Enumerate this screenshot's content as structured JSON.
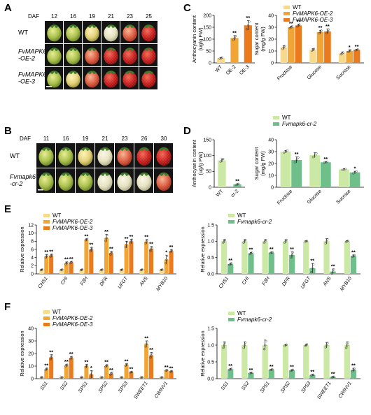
{
  "panels": {
    "A": {
      "label": "A",
      "daf_label": "DAF",
      "days": [
        "12",
        "16",
        "19",
        "21",
        "23",
        "25"
      ],
      "rows": [
        {
          "label": "WT",
          "italic": false
        },
        {
          "label": "FvMAPK6\n-OE-2",
          "italic": true
        },
        {
          "label": "FvMAPK6\n-OE-3",
          "italic": true
        }
      ]
    },
    "B": {
      "label": "B",
      "daf_label": "DAF",
      "days": [
        "11",
        "16",
        "19",
        "21",
        "23",
        "26",
        "30"
      ],
      "rows": [
        {
          "label": "WT",
          "italic": false
        },
        {
          "label": "Fvmapk6\n-cr-2",
          "italic": true
        }
      ]
    },
    "C": {
      "label": "C"
    },
    "D": {
      "label": "D"
    },
    "E": {
      "label": "E"
    },
    "F": {
      "label": "F"
    }
  },
  "colors": {
    "wt_oe": "#f7d98b",
    "oe2": "#f0a535",
    "oe3": "#ea7a1c",
    "wt_cr": "#cbe8a4",
    "cr2": "#6fbf8b"
  },
  "chart_data": [
    {
      "id": "C-anthocyanin",
      "type": "bar",
      "ylabel": "Anthocyanin content\n(ug/g FW)",
      "categories": [
        "WT",
        "OE-2",
        "OE-3"
      ],
      "values": [
        20,
        105,
        158
      ],
      "errors": [
        3,
        10,
        20
      ],
      "sig": [
        "",
        "**",
        "**"
      ],
      "ylim": [
        0,
        200
      ],
      "yticks": [
        0,
        50,
        100,
        150,
        200
      ],
      "bar_colors": [
        "#f7d98b",
        "#f0a535",
        "#ea7a1c"
      ]
    },
    {
      "id": "C-sugar",
      "type": "bar",
      "ylabel": "Sugar content\n(mg/g FW)",
      "categories": [
        "Fructose",
        "Glucose",
        "Sucrose"
      ],
      "series": [
        {
          "name": "WT",
          "values": [
            13,
            11,
            8
          ],
          "errors": [
            1.5,
            1,
            1
          ],
          "sig": [
            "",
            "",
            ""
          ]
        },
        {
          "name": "FvMAPK6-OE-2",
          "values": [
            30,
            26,
            10
          ],
          "errors": [
            1,
            1.5,
            1
          ],
          "sig": [
            "**",
            "**",
            "*"
          ]
        },
        {
          "name": "FvMAPK6-OE-3",
          "values": [
            31.5,
            26.5,
            11
          ],
          "errors": [
            1,
            2,
            0.5
          ],
          "sig": [
            "**",
            "**",
            "**"
          ]
        }
      ],
      "ylim": [
        0,
        40
      ],
      "yticks": [
        0,
        10,
        20,
        30,
        40
      ],
      "legend": "top-left"
    },
    {
      "id": "D-anthocyanin",
      "type": "bar",
      "ylabel": "Anthocyanin content\n(ug/g FW)",
      "categories": [
        "WT",
        "cr-2"
      ],
      "values": [
        85,
        9
      ],
      "errors": [
        5,
        2
      ],
      "sig": [
        "",
        "**"
      ],
      "ylim": [
        0,
        150
      ],
      "yticks": [
        0,
        50,
        100,
        150
      ],
      "bar_colors": [
        "#cbe8a4",
        "#6fbf8b"
      ]
    },
    {
      "id": "D-sugar",
      "type": "bar",
      "ylabel": "Sugar content\n(mg/g FW)",
      "categories": [
        "Fructose",
        "Glucose",
        "Sucrose"
      ],
      "series": [
        {
          "name": "WT",
          "values": [
            30,
            27,
            15
          ],
          "errors": [
            1,
            2,
            0.5
          ],
          "sig": [
            "",
            "",
            ""
          ]
        },
        {
          "name": "Fvmapk6-cr-2",
          "values": [
            23,
            21,
            12.5
          ],
          "errors": [
            2.5,
            0.5,
            1
          ],
          "sig": [
            "**",
            "**",
            "*"
          ]
        }
      ],
      "ylim": [
        0,
        40
      ],
      "yticks": [
        0,
        10,
        20,
        30,
        40
      ],
      "legend": "top-left"
    },
    {
      "id": "E-oe",
      "type": "bar",
      "ylabel": "Relative expression",
      "categories": [
        "CHS1",
        "CHI",
        "F3H",
        "DFR",
        "UFGT",
        "ANS",
        "MYB10"
      ],
      "series": [
        {
          "name": "WT",
          "values": [
            1,
            1,
            1,
            1,
            1,
            1,
            1
          ],
          "errors": [
            0.1,
            0.1,
            0.1,
            0.1,
            0.1,
            0.1,
            0.1
          ],
          "sig": [
            "",
            "",
            "",
            "",
            "",
            "",
            ""
          ]
        },
        {
          "name": "FvMAPK6-OE-2",
          "values": [
            4.3,
            2.6,
            8.4,
            8.8,
            7.2,
            7.9,
            3.5
          ],
          "errors": [
            0.4,
            0.3,
            0.2,
            0.9,
            0.8,
            0.5,
            1.1
          ],
          "sig": [
            "**",
            "**",
            "**",
            "**",
            "**",
            "**",
            "*"
          ]
        },
        {
          "name": "FvMAPK6-OE-3",
          "values": [
            4.5,
            2.8,
            6.0,
            5.1,
            8.0,
            6.1,
            5.6
          ],
          "errors": [
            0.3,
            0.2,
            0.5,
            0.4,
            0.5,
            0.6,
            0.3
          ],
          "sig": [
            "**",
            "**",
            "**",
            "**",
            "**",
            "**",
            "**"
          ]
        }
      ],
      "ylim": [
        0,
        12
      ],
      "yticks": [
        0,
        2,
        4,
        6,
        8,
        10,
        12
      ],
      "legend": "top-left"
    },
    {
      "id": "E-cr",
      "type": "bar",
      "ylabel": "Relative expression",
      "categories": [
        "CHS1",
        "CHI",
        "F3H",
        "DFR",
        "UFGT",
        "ANS",
        "MYB10"
      ],
      "series": [
        {
          "name": "WT",
          "values": [
            1,
            1,
            1,
            1,
            1,
            1,
            1
          ],
          "errors": [
            0.05,
            0.05,
            0.05,
            0.05,
            0.01,
            0.08,
            0.02
          ],
          "sig": [
            "",
            "",
            "",
            "",
            "",
            "",
            ""
          ]
        },
        {
          "name": "Fvmapk6-cr-2",
          "values": [
            0.3,
            0.63,
            0.65,
            0.58,
            0.17,
            0.07,
            0.55
          ],
          "errors": [
            0.03,
            0.03,
            0.02,
            0.1,
            0.15,
            0.08,
            0.03
          ],
          "sig": [
            "**",
            "**",
            "**",
            "**",
            "**",
            "**",
            "**"
          ]
        }
      ],
      "ylim": [
        0,
        1.5
      ],
      "yticks": [
        0,
        0.5,
        1.0,
        1.5
      ],
      "legend": "top-left"
    },
    {
      "id": "F-oe",
      "type": "bar",
      "ylabel": "Relative expression",
      "categories": [
        "SS1",
        "SS2",
        "SPS1",
        "SPS2",
        "SPS3",
        "SWEET1",
        "CWINV1"
      ],
      "series": [
        {
          "name": "WT",
          "values": [
            1,
            1,
            1,
            1,
            1,
            1,
            1
          ],
          "errors": [
            0.1,
            0.1,
            0.1,
            0.1,
            0.1,
            0.1,
            0.1
          ],
          "sig": [
            "",
            "",
            "",
            "",
            "",
            "",
            ""
          ]
        },
        {
          "name": "FvMAPK6-OE-2",
          "values": [
            7.5,
            10.5,
            10.0,
            10.2,
            11.0,
            27.5,
            6.6
          ],
          "errors": [
            0.8,
            0.8,
            1.2,
            0.8,
            0.8,
            2.5,
            0.3
          ],
          "sig": [
            "**",
            "**",
            "**",
            "**",
            "**",
            "**",
            "**"
          ]
        },
        {
          "name": "FvMAPK6-OE-3",
          "values": [
            17.0,
            16.5,
            3.4,
            3.9,
            5.2,
            18.5,
            5.8
          ],
          "errors": [
            2.0,
            1.0,
            3.0,
            0.8,
            0.3,
            2.2,
            0.3
          ],
          "sig": [
            "**",
            "**",
            "*",
            "**",
            "**",
            "**",
            "**"
          ]
        }
      ],
      "ylim": [
        0,
        40
      ],
      "yticks": [
        0,
        10,
        20,
        30,
        40
      ],
      "legend": "top-left"
    },
    {
      "id": "F-cr",
      "type": "bar",
      "ylabel": "Relative expression",
      "categories": [
        "SS1",
        "SS2",
        "SPS1",
        "SPS2",
        "SPS3",
        "SWEET1",
        "CWINV1"
      ],
      "series": [
        {
          "name": "WT",
          "values": [
            1,
            1,
            1,
            1,
            1,
            1,
            1
          ],
          "errors": [
            0.1,
            0.1,
            0.15,
            0.02,
            0.03,
            0.08,
            0.1
          ],
          "sig": [
            "",
            "",
            "",
            "",
            "",
            "",
            ""
          ]
        },
        {
          "name": "Fvmapk6-cr-2",
          "values": [
            0.28,
            0.17,
            0.27,
            0.25,
            0.11,
            0.05,
            0.26
          ],
          "errors": [
            0.02,
            0.01,
            0.01,
            0.02,
            0.01,
            0.01,
            0.05
          ],
          "sig": [
            "**",
            "**",
            "**",
            "**",
            "**",
            "**",
            "**"
          ]
        }
      ],
      "ylim": [
        0,
        1.5
      ],
      "yticks": [
        0,
        0.5,
        1.0,
        1.5
      ],
      "legend": "top-left"
    }
  ]
}
